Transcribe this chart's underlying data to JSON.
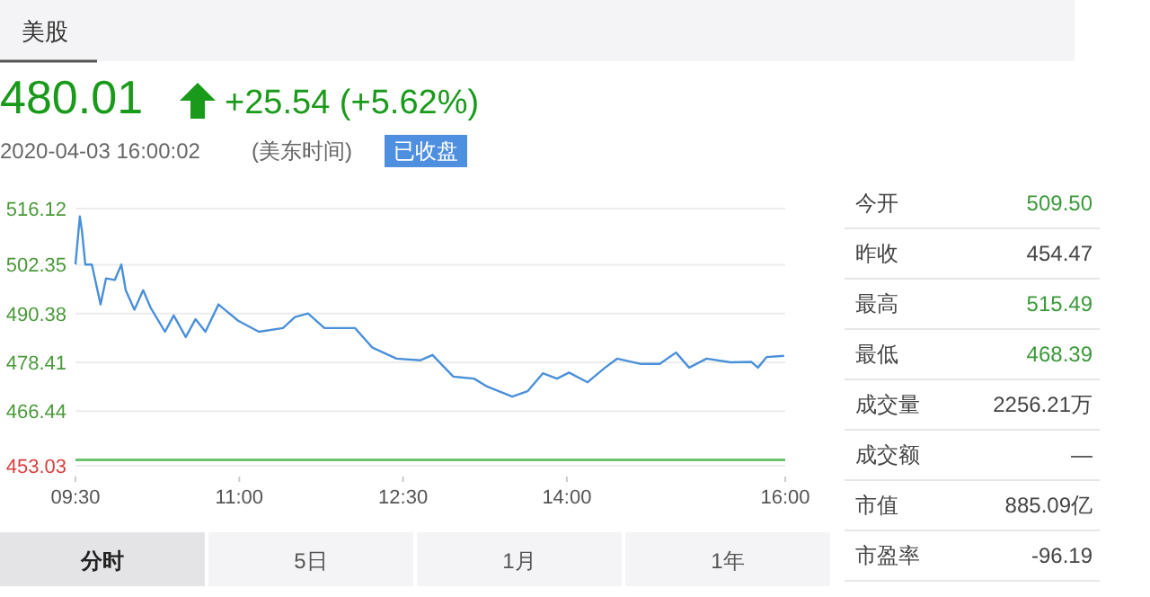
{
  "chart_data": {
    "type": "line",
    "series": [
      {
        "color": "#4a90d9",
        "x": [
          9.5,
          9.54,
          9.56,
          9.59,
          9.65,
          9.73,
          9.78,
          9.86,
          9.92,
          9.96,
          10.04,
          10.12,
          10.19,
          10.32,
          10.4,
          10.51,
          10.6,
          10.69,
          10.81,
          10.99,
          11.18,
          11.4,
          11.51,
          11.63,
          11.78,
          12.06,
          12.22,
          12.44,
          12.66,
          12.77,
          12.96,
          13.15,
          13.26,
          13.5,
          13.64,
          13.78,
          13.91,
          14.02,
          14.19,
          14.35,
          14.46,
          14.68,
          14.85,
          15.0,
          15.12,
          15.28,
          15.5,
          15.69,
          15.75,
          15.83,
          15.99
        ],
        "values": [
          502.4,
          514.2,
          510.5,
          502.4,
          502.4,
          492.6,
          499.0,
          498.6,
          502.4,
          496.1,
          491.3,
          496.1,
          491.7,
          485.9,
          489.9,
          484.6,
          489.0,
          485.9,
          492.6,
          488.6,
          485.9,
          486.8,
          489.5,
          490.4,
          486.8,
          486.8,
          482.0,
          479.3,
          478.9,
          480.2,
          474.9,
          474.4,
          472.6,
          470.0,
          471.3,
          475.7,
          474.4,
          475.9,
          473.5,
          477.1,
          479.3,
          478.0,
          478.0,
          480.8,
          477.1,
          479.3,
          478.4,
          478.5,
          477.1,
          479.7,
          480.0
        ]
      }
    ],
    "xlim": [
      9.5,
      16
    ],
    "xticks": [
      {
        "value": 9.5,
        "label": "09:30"
      },
      {
        "value": 11,
        "label": "11:00"
      },
      {
        "value": 12.5,
        "label": "12:30"
      },
      {
        "value": 14,
        "label": "14:00"
      },
      {
        "value": 16,
        "label": "16:00"
      }
    ],
    "ylim": [
      453.03,
      516.12
    ],
    "yticks": [
      {
        "value": 516.12,
        "label": "516.12"
      },
      {
        "value": 502.35,
        "label": "502.35"
      },
      {
        "value": 490.38,
        "label": "490.38"
      },
      {
        "value": 478.41,
        "label": "478.41"
      },
      {
        "value": 466.44,
        "label": "466.44"
      },
      {
        "value": 453.03,
        "label": "453.03"
      }
    ],
    "ref_lines": [
      {
        "axis": "y",
        "value": 454.47,
        "color": "#6cc36c"
      }
    ],
    "grid": "y",
    "marker": "none",
    "line_style": "solid",
    "annotations": [
      "美股",
      "480.01",
      "+25.54 (+5.62%)",
      "2020-04-03 16:00:02",
      "(美东时间)",
      "已收盘",
      "今开",
      "509.50",
      "昨收",
      "454.47",
      "最高",
      "515.49",
      "最低",
      "468.39",
      "成交量",
      "2256.21万",
      "成交额",
      "—",
      "市值",
      "885.09亿",
      "市盈率",
      "-96.19",
      "分时",
      "5日",
      "1月",
      "1年"
    ]
  }
}
